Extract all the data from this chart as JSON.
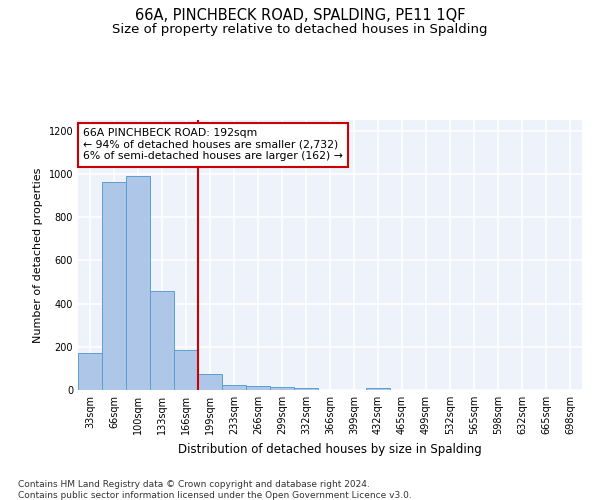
{
  "title": "66A, PINCHBECK ROAD, SPALDING, PE11 1QF",
  "subtitle": "Size of property relative to detached houses in Spalding",
  "xlabel": "Distribution of detached houses by size in Spalding",
  "ylabel": "Number of detached properties",
  "categories": [
    "33sqm",
    "66sqm",
    "100sqm",
    "133sqm",
    "166sqm",
    "199sqm",
    "233sqm",
    "266sqm",
    "299sqm",
    "332sqm",
    "366sqm",
    "399sqm",
    "432sqm",
    "465sqm",
    "499sqm",
    "532sqm",
    "565sqm",
    "598sqm",
    "632sqm",
    "665sqm",
    "698sqm"
  ],
  "values": [
    170,
    965,
    990,
    460,
    185,
    75,
    25,
    20,
    12,
    8,
    0,
    0,
    10,
    0,
    0,
    0,
    0,
    0,
    0,
    0,
    0
  ],
  "bar_color": "#aec6e8",
  "bar_edge_color": "#5a9fd4",
  "vline_color": "#cc0000",
  "annotation_text": "66A PINCHBECK ROAD: 192sqm\n← 94% of detached houses are smaller (2,732)\n6% of semi-detached houses are larger (162) →",
  "annotation_box_color": "#ffffff",
  "annotation_box_edge_color": "#cc0000",
  "ylim": [
    0,
    1250
  ],
  "yticks": [
    0,
    200,
    400,
    600,
    800,
    1000,
    1200
  ],
  "background_color": "#eef2fa",
  "grid_color": "#ffffff",
  "footer": "Contains HM Land Registry data © Crown copyright and database right 2024.\nContains public sector information licensed under the Open Government Licence v3.0.",
  "title_fontsize": 10.5,
  "subtitle_fontsize": 9.5,
  "annotation_fontsize": 7.8,
  "footer_fontsize": 6.5,
  "ylabel_fontsize": 8,
  "xlabel_fontsize": 8.5,
  "tick_fontsize": 7
}
